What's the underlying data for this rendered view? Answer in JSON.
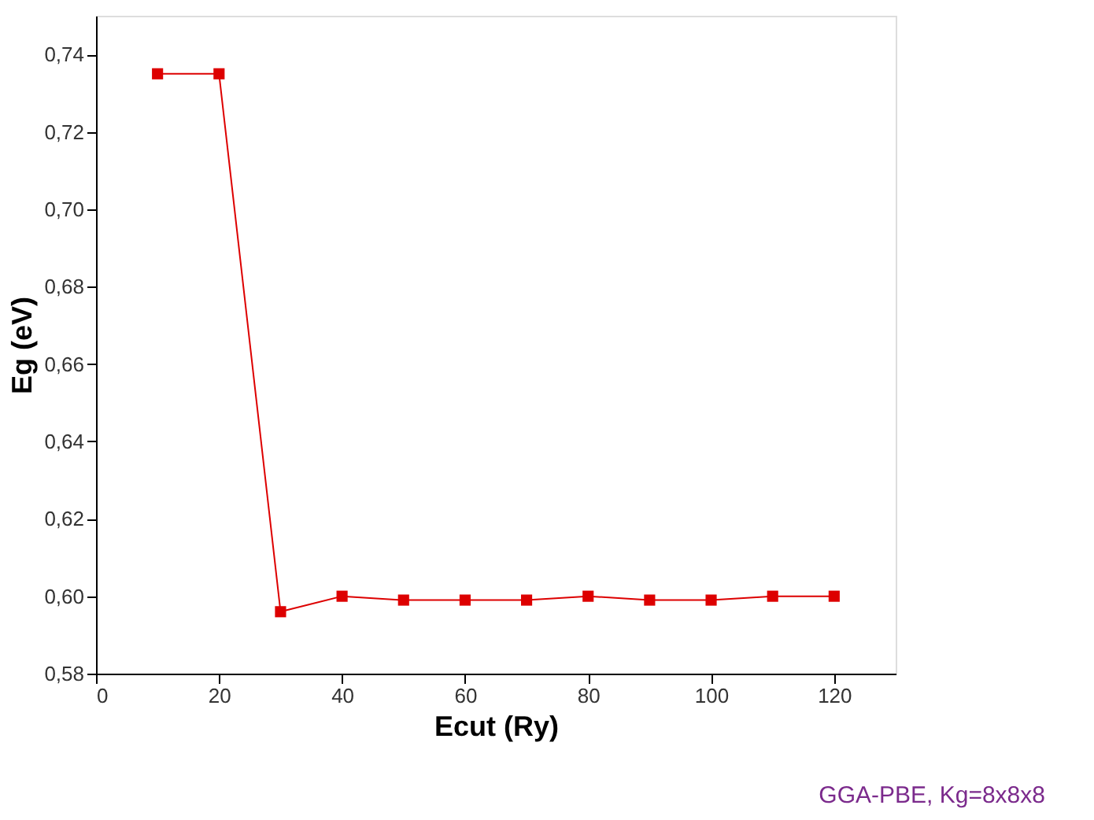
{
  "chart_data": {
    "type": "line",
    "xlabel": "Ecut (Ry)",
    "ylabel": "Eg (eV)",
    "x": [
      10,
      20,
      30,
      40,
      50,
      60,
      70,
      80,
      90,
      100,
      110,
      120
    ],
    "series": [
      {
        "color": "#dd0000",
        "values": [
          0.735,
          0.735,
          0.596,
          0.6,
          0.599,
          0.599,
          0.599,
          0.6,
          0.599,
          0.599,
          0.6,
          0.6
        ]
      }
    ],
    "xlim": [
      0,
      130
    ],
    "xticks": [
      0,
      20,
      40,
      60,
      80,
      100,
      120
    ],
    "ylim": [
      0.58,
      0.75
    ],
    "yticks": [
      {
        "value": 0.58,
        "label": "0,58"
      },
      {
        "value": 0.6,
        "label": "0,60"
      },
      {
        "value": 0.62,
        "label": "0,62"
      },
      {
        "value": 0.64,
        "label": "0,64"
      },
      {
        "value": 0.66,
        "label": "0,66"
      },
      {
        "value": 0.68,
        "label": "0,68"
      },
      {
        "value": 0.7,
        "label": "0,70"
      },
      {
        "value": 0.72,
        "label": "0,72"
      },
      {
        "value": 0.74,
        "label": "0,74"
      }
    ],
    "marker": "square",
    "line_style": "solid",
    "grid": false,
    "annotations": [
      "GGA-PBE, Kg=8x8x8"
    ]
  }
}
